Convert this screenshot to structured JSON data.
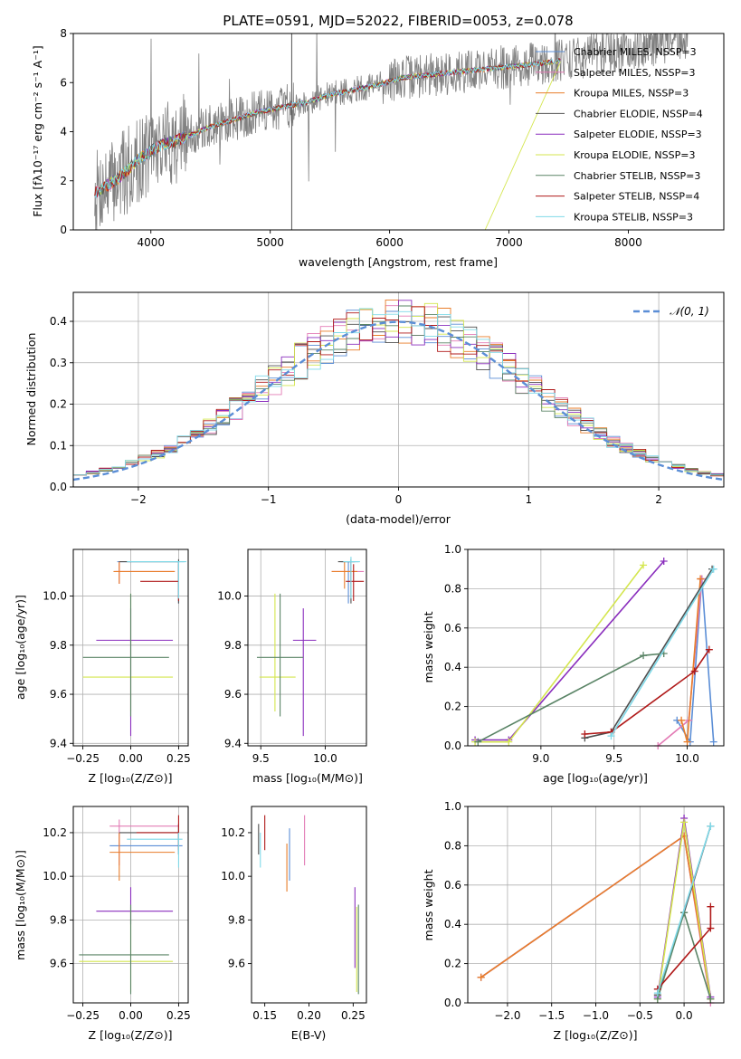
{
  "chart_data": [
    {
      "id": "spectrum",
      "type": "line",
      "title": "PLATE=0591, MJD=52022, FIBERID=0053, z=0.078",
      "xlabel": "wavelength [Angstrom, rest frame]",
      "ylabel": "Flux [fλ10⁻¹⁷ erg cm⁻² s⁻¹ A⁻¹]",
      "xlim": [
        3350,
        8800
      ],
      "ylim": [
        0,
        8
      ],
      "xticks": [
        4000,
        5000,
        6000,
        7000,
        8000
      ],
      "yticks": [
        0,
        2,
        4,
        6,
        8
      ],
      "grid": false,
      "legend_placement": "right",
      "data_note": "observed spectrum drawn in grey with best-fit models overlaid",
      "continuum": {
        "x": [
          3530,
          3600,
          3700,
          3800,
          3900,
          4000,
          4100,
          4200,
          4300,
          4400,
          4500,
          4700,
          4900,
          5100,
          5300,
          5500,
          5700,
          5900,
          6100,
          6300,
          6500,
          6700,
          6900,
          7100,
          7300,
          7430
        ],
        "y": [
          1.5,
          1.7,
          2.0,
          2.4,
          2.9,
          3.2,
          3.5,
          3.6,
          3.8,
          4.0,
          4.2,
          4.5,
          4.8,
          5.0,
          5.2,
          5.5,
          5.7,
          5.9,
          6.2,
          6.3,
          6.4,
          6.5,
          6.6,
          6.7,
          6.8,
          6.9
        ]
      },
      "series": [
        {
          "name": "Chabrier MILES, N_SSP=3",
          "color": "#5b8ed6"
        },
        {
          "name": "Salpeter MILES, N_SSP=3",
          "color": "#e37bb5"
        },
        {
          "name": "Kroupa MILES, N_SSP=3",
          "color": "#e87d2a"
        },
        {
          "name": "Chabrier ELODIE, N_SSP=4",
          "color": "#4f4f4f"
        },
        {
          "name": "Salpeter ELODIE, N_SSP=3",
          "color": "#8a2ebd"
        },
        {
          "name": "Kroupa ELODIE, N_SSP=3",
          "color": "#d4e64f"
        },
        {
          "name": "Chabrier STELIB, N_SSP=3",
          "color": "#5a8466"
        },
        {
          "name": "Salpeter STELIB, N_SSP=4",
          "color": "#b01a1a"
        },
        {
          "name": "Kroupa STELIB, N_SSP=3",
          "color": "#7fd9e8"
        }
      ]
    },
    {
      "id": "residuals",
      "type": "line",
      "xlabel": "(data-model)/error",
      "ylabel": "Normed distribution",
      "xlim": [
        -2.5,
        2.5
      ],
      "ylim": [
        0,
        0.47
      ],
      "xticks": [
        -2,
        -1,
        0,
        1,
        2
      ],
      "yticks": [
        0.0,
        0.1,
        0.2,
        0.3,
        0.4
      ],
      "grid": true,
      "legend": "𝒩(0, 1)",
      "legend_placement": "top-right",
      "histogram_note": "step histograms, one per model, bin width 0.1"
    },
    {
      "id": "age-vs-Z",
      "type": "scatter",
      "xlabel": "Z [log₁₀(Z/Z⊙)]",
      "ylabel": "age  [log₁₀(age/yr)]",
      "xlim": [
        -0.3,
        0.3
      ],
      "ylim": [
        9.39,
        10.19
      ],
      "xticks": [
        -0.25,
        0.0,
        0.25
      ],
      "yticks": [
        9.4,
        9.6,
        9.8,
        10.0
      ],
      "grid": true,
      "errorbars": [
        {
          "color": "#5b8ed6",
          "x": [
            -0.07,
            0.28
          ],
          "y": [
            9.97,
            10.14
          ],
          "cx": 0.25,
          "cy": 10.14
        },
        {
          "color": "#e37bb5",
          "x": [
            -0.08,
            0.23
          ],
          "y": [
            10.05,
            10.14
          ],
          "cx": -0.06,
          "cy": 10.1
        },
        {
          "color": "#e87d2a",
          "x": [
            -0.09,
            0.23
          ],
          "y": [
            10.05,
            10.14
          ],
          "cx": -0.06,
          "cy": 10.1
        },
        {
          "color": "#4f4f4f",
          "x": [
            -0.06,
            0.25
          ],
          "y": [
            9.97,
            10.15
          ],
          "cx": 0.25,
          "cy": 10.14
        },
        {
          "color": "#8a2ebd",
          "x": [
            -0.18,
            0.22
          ],
          "y": [
            9.43,
            9.95
          ],
          "cx": 0.0,
          "cy": 9.82
        },
        {
          "color": "#d4e64f",
          "x": [
            -0.25,
            0.22
          ],
          "y": [
            9.53,
            10.01
          ],
          "cx": 0.0,
          "cy": 9.67
        },
        {
          "color": "#5a8466",
          "x": [
            -0.25,
            0.2
          ],
          "y": [
            9.51,
            10.01
          ],
          "cx": 0.0,
          "cy": 9.75
        },
        {
          "color": "#b01a1a",
          "x": [
            0.05,
            0.25
          ],
          "y": [
            9.98,
            10.13
          ],
          "cx": 0.25,
          "cy": 10.06
        },
        {
          "color": "#7fd9e8",
          "x": [
            -0.02,
            0.29
          ],
          "y": [
            9.99,
            10.14
          ],
          "cx": 0.25,
          "cy": 10.14
        }
      ]
    },
    {
      "id": "age-vs-mass",
      "type": "scatter",
      "xlabel": "mass [log₁₀(M/M⊙)]",
      "ylabel": "",
      "xlim": [
        9.4,
        10.32
      ],
      "ylim": [
        9.39,
        10.19
      ],
      "xticks": [
        9.5,
        10.0
      ],
      "yticks": [
        9.4,
        9.6,
        9.8,
        10.0
      ],
      "grid": true,
      "errorbars": [
        {
          "color": "#5b8ed6",
          "x": [
            10.12,
            10.26
          ],
          "y": [
            9.97,
            10.14
          ],
          "cx": 10.18,
          "cy": 10.14
        },
        {
          "color": "#e37bb5",
          "x": [
            10.05,
            10.3
          ],
          "y": [
            10.05,
            10.14
          ],
          "cx": 10.2,
          "cy": 10.1
        },
        {
          "color": "#e87d2a",
          "x": [
            10.05,
            10.25
          ],
          "y": [
            10.03,
            10.14
          ],
          "cx": 10.15,
          "cy": 10.1
        },
        {
          "color": "#4f4f4f",
          "x": [
            10.1,
            10.23
          ],
          "y": [
            9.97,
            10.15
          ],
          "cx": 10.2,
          "cy": 10.14
        },
        {
          "color": "#8a2ebd",
          "x": [
            9.75,
            9.93
          ],
          "y": [
            9.43,
            9.95
          ],
          "cx": 9.83,
          "cy": 9.82
        },
        {
          "color": "#d4e64f",
          "x": [
            9.49,
            9.77
          ],
          "y": [
            9.53,
            10.01
          ],
          "cx": 9.61,
          "cy": 9.67
        },
        {
          "color": "#5a8466",
          "x": [
            9.47,
            9.83
          ],
          "y": [
            9.51,
            10.01
          ],
          "cx": 9.65,
          "cy": 9.75
        },
        {
          "color": "#b01a1a",
          "x": [
            10.16,
            10.3
          ],
          "y": [
            9.98,
            10.13
          ],
          "cx": 10.22,
          "cy": 10.06
        },
        {
          "color": "#7fd9e8",
          "x": [
            10.14,
            10.27
          ],
          "y": [
            9.99,
            10.16
          ],
          "cx": 10.2,
          "cy": 10.14
        }
      ]
    },
    {
      "id": "weight-vs-age",
      "type": "line",
      "xlabel": "age  [log₁₀(age/yr)]",
      "ylabel": "mass weight",
      "xlim": [
        8.5,
        10.25
      ],
      "ylim": [
        0,
        1.0
      ],
      "xticks": [
        9.0,
        9.5,
        10.0
      ],
      "yticks": [
        0.0,
        0.2,
        0.4,
        0.6,
        0.8,
        1.0
      ],
      "grid": true,
      "series": [
        {
          "color": "#5b8ed6",
          "x": [
            9.93,
            10.02,
            10.1,
            10.18
          ],
          "y": [
            0.13,
            0.02,
            0.85,
            0.02
          ]
        },
        {
          "color": "#e37bb5",
          "x": [
            9.8,
            10.01,
            10.1
          ],
          "y": [
            0.0,
            0.13,
            0.85
          ]
        },
        {
          "color": "#e87d2a",
          "x": [
            9.96,
            10.0,
            10.09
          ],
          "y": [
            0.13,
            0.02,
            0.85
          ]
        },
        {
          "color": "#4f4f4f",
          "x": [
            9.3,
            9.48,
            10.17
          ],
          "y": [
            0.04,
            0.07,
            0.9
          ]
        },
        {
          "color": "#8a2ebd",
          "x": [
            8.55,
            8.78,
            9.84
          ],
          "y": [
            0.03,
            0.03,
            0.94
          ]
        },
        {
          "color": "#d4e64f",
          "x": [
            8.55,
            8.78,
            9.7
          ],
          "y": [
            0.02,
            0.02,
            0.92
          ]
        },
        {
          "color": "#5a8466",
          "x": [
            8.57,
            9.7,
            9.84
          ],
          "y": [
            0.02,
            0.46,
            0.47
          ]
        },
        {
          "color": "#b01a1a",
          "x": [
            9.3,
            9.48,
            10.05,
            10.15
          ],
          "y": [
            0.06,
            0.07,
            0.38,
            0.49
          ]
        },
        {
          "color": "#7fd9e8",
          "x": [
            9.48,
            10.18
          ],
          "y": [
            0.05,
            0.9
          ]
        }
      ]
    },
    {
      "id": "mass-vs-Z",
      "type": "scatter",
      "xlabel": "Z [log₁₀(Z/Z⊙)]",
      "ylabel": "mass [log₁₀(M/M⊙)]",
      "xlim": [
        -0.3,
        0.3
      ],
      "ylim": [
        9.42,
        10.32
      ],
      "xticks": [
        -0.25,
        0.0,
        0.25
      ],
      "yticks": [
        9.6,
        9.8,
        10.0,
        10.2
      ],
      "grid": true,
      "errorbars": [
        {
          "color": "#5b8ed6",
          "x": [
            -0.11,
            0.27
          ],
          "y": [
            10.1,
            10.24
          ],
          "cx": 0.25,
          "cy": 10.14
        },
        {
          "color": "#e37bb5",
          "x": [
            -0.11,
            0.25
          ],
          "y": [
            10.05,
            10.26
          ],
          "cx": -0.06,
          "cy": 10.23
        },
        {
          "color": "#e87d2a",
          "x": [
            -0.11,
            0.23
          ],
          "y": [
            9.98,
            10.2
          ],
          "cx": -0.06,
          "cy": 10.11
        },
        {
          "color": "#4f4f4f",
          "x": [
            -0.06,
            0.25
          ],
          "y": [
            10.1,
            10.24
          ],
          "cx": 0.25,
          "cy": 10.2
        },
        {
          "color": "#8a2ebd",
          "x": [
            -0.18,
            0.22
          ],
          "y": [
            9.78,
            9.95
          ],
          "cx": 0.0,
          "cy": 9.84
        },
        {
          "color": "#d4e64f",
          "x": [
            -0.27,
            0.22
          ],
          "y": [
            9.47,
            9.86
          ],
          "cx": 0.0,
          "cy": 9.61
        },
        {
          "color": "#5a8466",
          "x": [
            -0.27,
            0.2
          ],
          "y": [
            9.46,
            9.87
          ],
          "cx": 0.0,
          "cy": 9.64
        },
        {
          "color": "#b01a1a",
          "x": [
            0.03,
            0.25
          ],
          "y": [
            10.12,
            10.28
          ],
          "cx": 0.25,
          "cy": 10.2
        },
        {
          "color": "#7fd9e8",
          "x": [
            -0.02,
            0.27
          ],
          "y": [
            10.04,
            10.2
          ],
          "cx": 0.25,
          "cy": 10.17
        }
      ]
    },
    {
      "id": "mass-vs-ebv",
      "type": "scatter",
      "xlabel": "E(B-V)",
      "ylabel": "",
      "xlim": [
        0.135,
        0.265
      ],
      "ylim": [
        9.42,
        10.32
      ],
      "xticks": [
        0.15,
        0.2,
        0.25
      ],
      "yticks": [
        9.6,
        9.8,
        10.0,
        10.2
      ],
      "grid": false,
      "errorbars": [
        {
          "color": "#5b8ed6",
          "x": [
            0.178,
            0.178
          ],
          "y": [
            9.98,
            10.22
          ],
          "cx": 0.178,
          "cy": 10.1
        },
        {
          "color": "#e37bb5",
          "x": [
            0.195,
            0.195
          ],
          "y": [
            10.05,
            10.28
          ],
          "cx": 0.195,
          "cy": 10.16
        },
        {
          "color": "#e87d2a",
          "x": [
            0.175,
            0.175
          ],
          "y": [
            9.93,
            10.15
          ],
          "cx": 0.175,
          "cy": 10.04
        },
        {
          "color": "#4f4f4f",
          "x": [
            0.143,
            0.143
          ],
          "y": [
            10.1,
            10.24
          ],
          "cx": 0.143,
          "cy": 10.17
        },
        {
          "color": "#8a2ebd",
          "x": [
            0.252,
            0.252
          ],
          "y": [
            9.58,
            9.95
          ],
          "cx": 0.252,
          "cy": 9.77
        },
        {
          "color": "#d4e64f",
          "x": [
            0.254,
            0.254
          ],
          "y": [
            9.47,
            9.86
          ],
          "cx": 0.254,
          "cy": 9.66
        },
        {
          "color": "#5a8466",
          "x": [
            0.256,
            0.256
          ],
          "y": [
            9.46,
            9.87
          ],
          "cx": 0.256,
          "cy": 9.66
        },
        {
          "color": "#b01a1a",
          "x": [
            0.15,
            0.15
          ],
          "y": [
            10.12,
            10.28
          ],
          "cx": 0.15,
          "cy": 10.2
        },
        {
          "color": "#7fd9e8",
          "x": [
            0.145,
            0.145
          ],
          "y": [
            10.04,
            10.2
          ],
          "cx": 0.145,
          "cy": 10.12
        }
      ]
    },
    {
      "id": "weight-vs-Z",
      "type": "line",
      "xlabel": "Z [log₁₀(Z/Z⊙)]",
      "ylabel": "mass weight",
      "xlim": [
        -2.45,
        0.45
      ],
      "ylim": [
        0,
        1.0
      ],
      "xticks": [
        -2.0,
        -1.5,
        -1.0,
        -0.5,
        0.0
      ],
      "yticks": [
        0.0,
        0.2,
        0.4,
        0.6,
        0.8,
        1.0
      ],
      "grid": true,
      "series": [
        {
          "color": "#5b8ed6",
          "x": [
            -2.3,
            0.0,
            0.3
          ],
          "y": [
            0.13,
            0.85,
            0.02
          ]
        },
        {
          "color": "#e37bb5",
          "x": [
            -2.3,
            0.0,
            0.3
          ],
          "y": [
            0.13,
            0.85,
            0.0
          ]
        },
        {
          "color": "#e87d2a",
          "x": [
            -2.3,
            0.0,
            0.3
          ],
          "y": [
            0.13,
            0.85,
            0.02
          ]
        },
        {
          "color": "#4f4f4f",
          "x": [
            -0.3,
            0.0,
            0.3
          ],
          "y": [
            0.04,
            0.46,
            0.9
          ]
        },
        {
          "color": "#8a2ebd",
          "x": [
            -0.3,
            0.0,
            0.3
          ],
          "y": [
            0.03,
            0.94,
            0.03
          ]
        },
        {
          "color": "#d4e64f",
          "x": [
            -0.3,
            0.0,
            0.3
          ],
          "y": [
            0.02,
            0.92,
            0.02
          ]
        },
        {
          "color": "#5a8466",
          "x": [
            -0.3,
            0.0,
            0.3
          ],
          "y": [
            0.02,
            0.46,
            0.02
          ]
        },
        {
          "color": "#b01a1a",
          "x": [
            -0.3,
            0.3,
            0.3
          ],
          "y": [
            0.07,
            0.38,
            0.49
          ]
        },
        {
          "color": "#7fd9e8",
          "x": [
            -0.3,
            0.3
          ],
          "y": [
            0.05,
            0.9
          ]
        }
      ]
    }
  ]
}
